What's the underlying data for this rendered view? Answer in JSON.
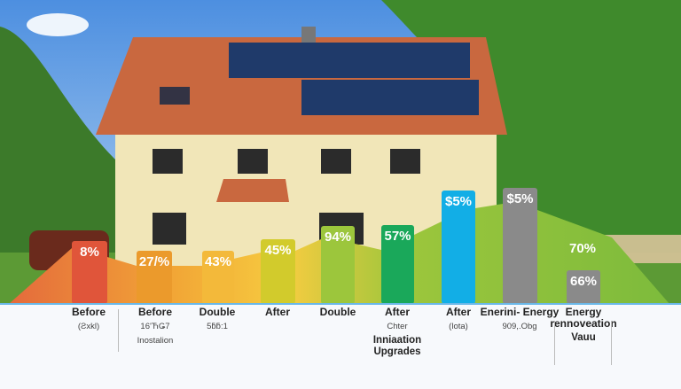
{
  "colors": {
    "sky": "#6aa6e6",
    "roof": "#c9683f",
    "wall": "#f1e6b8",
    "tree": "#3f8a2c",
    "grass": "#5c9a35",
    "panel": "#1f3a6a",
    "baseline": "#6ab8e8"
  },
  "chart_data": {
    "type": "bar",
    "title": "",
    "bars": [
      {
        "value": 8,
        "label": "8%",
        "color": "#e0553a"
      },
      {
        "value": 27,
        "label": "27/%",
        "color": "#eb9a2c"
      },
      {
        "value": 43,
        "label": "43%",
        "color": "#f3b93a"
      },
      {
        "value": 45,
        "label": "45%",
        "color": "#d2cb2c"
      },
      {
        "value": 94,
        "label": "94%",
        "color": "#9cc63c"
      },
      {
        "value": 57,
        "label": "57%",
        "color": "#1aa85a"
      },
      {
        "value": 5,
        "label": "$5%",
        "color": "#12aee6"
      },
      {
        "value": 5,
        "label": "$5%",
        "color": "#8a8a8a"
      },
      {
        "value": 66,
        "label": "66%",
        "color": "#8a8a8a"
      }
    ],
    "area_annotation": "70%",
    "categories": [
      {
        "title": "Before",
        "sub": "(Ƨxkl)"
      },
      {
        "title": "Before",
        "sub": "16'ЋǤ7",
        "sub2": "Inostalion"
      },
      {
        "title": "Double",
        "sub": "5ƃƃ:1"
      },
      {
        "title": "After"
      },
      {
        "title": "Double"
      },
      {
        "title": "After",
        "sub": "Chter",
        "sub2": "Inniaation Upgrades"
      },
      {
        "title": "After",
        "sub": "(lota)"
      },
      {
        "title": "Enerini- Energy",
        "sub": "909,.Obg"
      },
      {
        "title": "Energy rennoveation",
        "sub2": "Vauu"
      }
    ]
  }
}
